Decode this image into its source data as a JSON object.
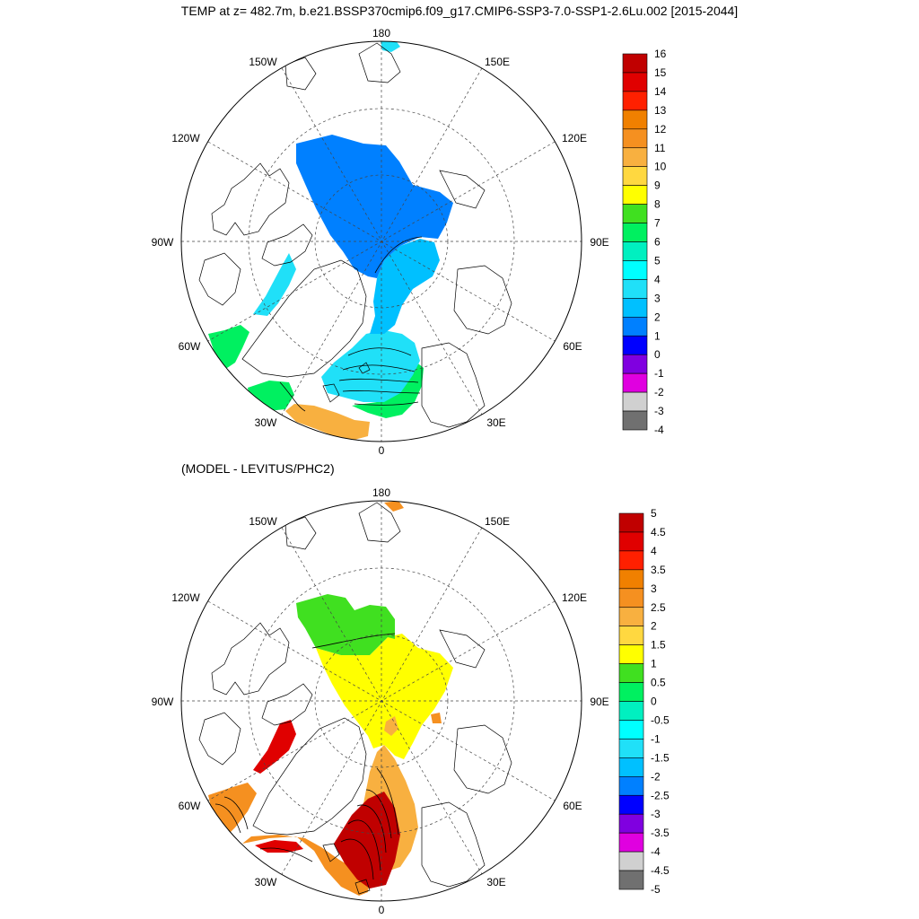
{
  "title": "TEMP at z= 482.7m, b.e21.BSSP370cmip6.f09_g17.CMIP6-SSP3-7.0-SSP1-2.6Lu.002 [2015-2044]",
  "subtitle": "(MODEL - LEVITUS/PHC2)",
  "longitude_labels": [
    "180",
    "150E",
    "120E",
    "90E",
    "60E",
    "30E",
    "0",
    "30W",
    "60W",
    "90W",
    "120W",
    "150W"
  ],
  "colorbar_top": {
    "labels": [
      "16",
      "15",
      "14",
      "13",
      "12",
      "11",
      "10",
      "9",
      "8",
      "7",
      "6",
      "5",
      "4",
      "3",
      "2",
      "1",
      "0",
      "-1",
      "-2",
      "-3",
      "-4"
    ],
    "colors": [
      "#c00000",
      "#e00000",
      "#ff2000",
      "#f08000",
      "#f59020",
      "#f8b040",
      "#ffd840",
      "#ffff00",
      "#40e020",
      "#00f060",
      "#00f0c0",
      "#00ffff",
      "#20e0f8",
      "#00c0ff",
      "#0080ff",
      "#0000ff",
      "#8000e0",
      "#e000e0",
      "#d0d0d0",
      "#707070"
    ]
  },
  "colorbar_bottom": {
    "labels": [
      "5",
      "4.5",
      "4",
      "3.5",
      "3",
      "2.5",
      "2",
      "1.5",
      "1",
      "0.5",
      "0",
      "-0.5",
      "-1",
      "-1.5",
      "-2",
      "-2.5",
      "-3",
      "-3.5",
      "-4",
      "-4.5",
      "-5"
    ],
    "colors": [
      "#c00000",
      "#e00000",
      "#ff2000",
      "#f08000",
      "#f59020",
      "#f8b040",
      "#ffd840",
      "#ffff00",
      "#40e020",
      "#00f060",
      "#00f0c0",
      "#00ffff",
      "#20e0f8",
      "#00c0ff",
      "#0080ff",
      "#0000ff",
      "#8000e0",
      "#e000e0",
      "#d0d0d0",
      "#707070"
    ]
  },
  "field_colors": {
    "top_arctic_basin": "#0080ff",
    "top_eurasian_basin": "#00c0ff",
    "top_nordic_seas": "#20e0f8",
    "top_barents_inflow": "#00f060",
    "top_atlantic_warm": "#f8b040",
    "top_labrador": "#00f060",
    "top_baffin": "#20e0f8",
    "bottom_canada_basin": "#40e020",
    "bottom_arctic_basin": "#ffff00",
    "bottom_fram_strait": "#f8b040",
    "bottom_nordic_seas": "#c00000",
    "bottom_baffin": "#e00000",
    "bottom_labrador": "#f59020"
  }
}
